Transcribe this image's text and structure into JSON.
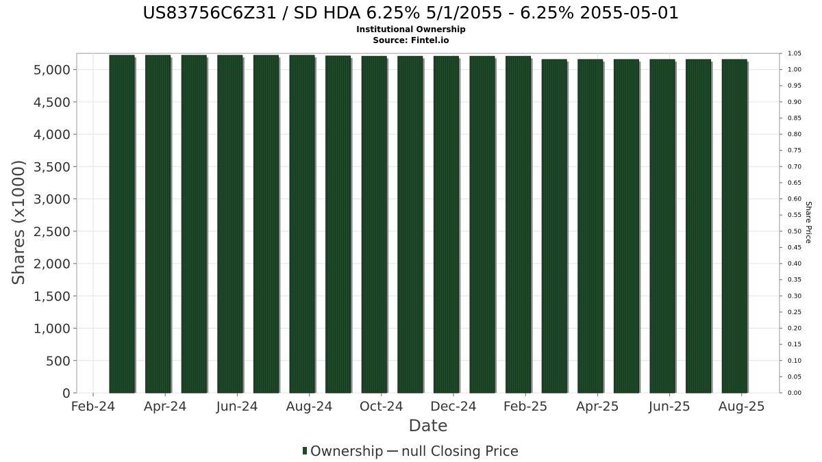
{
  "chart_data": {
    "type": "bar",
    "title": "US83756C6Z31 / SD HDA 6.25% 5/1/2055 - 6.25% 2055-05-01",
    "subtitle_lines": [
      "Institutional Ownership",
      "Source: Fintel.io"
    ],
    "xlabel": "Date",
    "ylabel": "Shares (x1000)",
    "y2label": "Share Price",
    "ylim": [
      0,
      5250
    ],
    "y2lim": [
      0,
      1.05
    ],
    "grid": true,
    "x_tick_labels": [
      "Feb-24",
      "Apr-24",
      "Jun-24",
      "Aug-24",
      "Oct-24",
      "Dec-24",
      "Feb-25",
      "Apr-25",
      "Jun-25",
      "Aug-25"
    ],
    "y_tick_labels": [
      "0",
      "500",
      "1,000",
      "1,500",
      "2,000",
      "2,500",
      "3,000",
      "3,500",
      "4,000",
      "4,500",
      "5,000"
    ],
    "y2_tick_labels": [
      "0.00",
      "0.05",
      "0.10",
      "0.15",
      "0.20",
      "0.25",
      "0.30",
      "0.35",
      "0.40",
      "0.45",
      "0.50",
      "0.55",
      "0.60",
      "0.65",
      "0.70",
      "0.75",
      "0.80",
      "0.85",
      "0.90",
      "0.95",
      "1.00",
      "1.05"
    ],
    "series": [
      {
        "name": "Ownership",
        "color": "#1f4a2a",
        "values": [
          5220,
          5220,
          5220,
          5220,
          5220,
          5220,
          5210,
          5205,
          5205,
          5205,
          5205,
          5205,
          5155,
          5155,
          5155,
          5155,
          5155,
          5155
        ]
      },
      {
        "name": "null Closing Price",
        "color": "#444444",
        "values": []
      }
    ],
    "legend": {
      "position": "bottom",
      "entries": [
        "Ownership",
        "null Closing Price"
      ]
    }
  }
}
